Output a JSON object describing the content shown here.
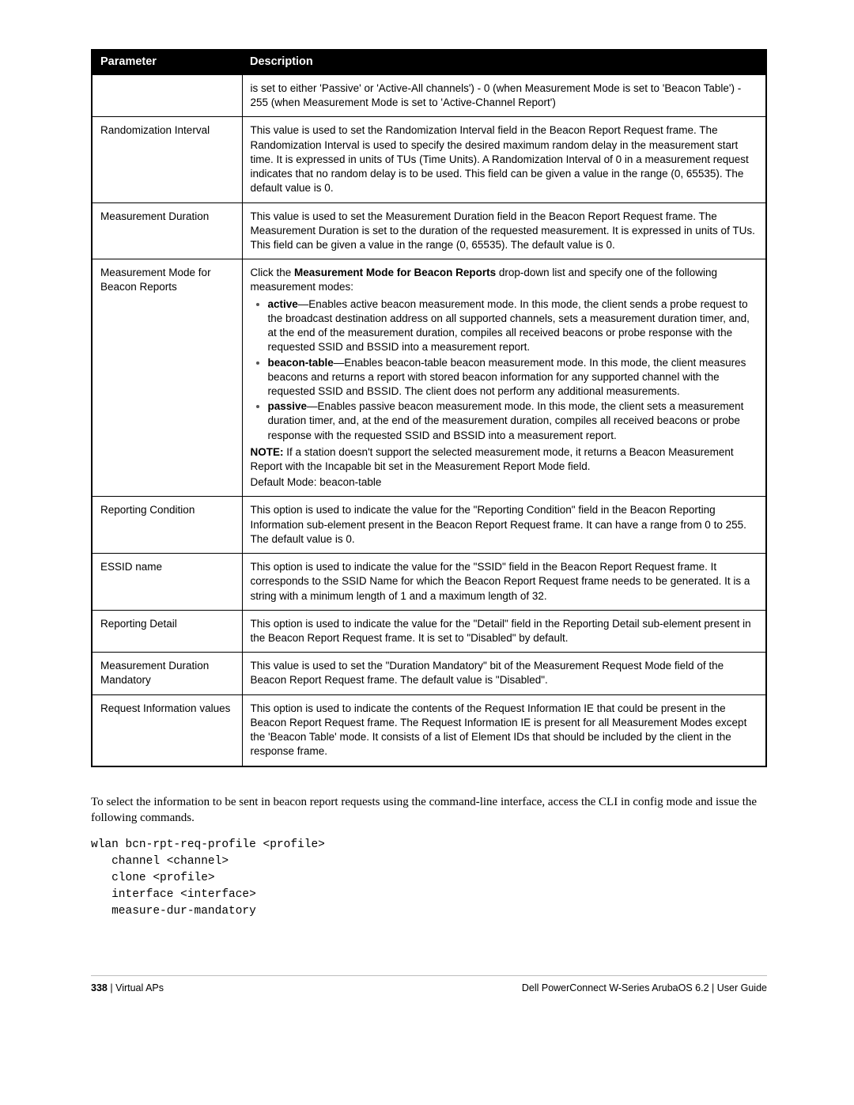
{
  "table": {
    "header": {
      "param": "Parameter",
      "desc": "Description"
    },
    "rows": [
      {
        "param": "",
        "desc_plain": "is set to either 'Passive' or 'Active-All channels') - 0 (when Measurement Mode is set to 'Beacon Table') - 255 (when Measurement Mode is set to 'Active-Channel Report')"
      },
      {
        "param": "Randomization Interval",
        "desc_plain": "This value is used to set the Randomization Interval field in the Beacon Report Request frame. The Randomization Interval is used to specify the desired maximum random delay in the measurement start time. It is expressed in units of TUs (Time Units). A Randomization Interval of 0 in a measurement request indicates that no random delay is to be used. This field can be given a value in the range (0, 65535). The default value is 0."
      },
      {
        "param": "Measurement Duration",
        "desc_plain": "This value is used to set the Measurement Duration field in the Beacon Report Request frame. The Measurement Duration is set to the duration of the requested measurement. It is expressed in units of TUs. This field can be given a value in the range (0, 65535). The default value is 0."
      },
      {
        "param": "Measurement Mode for Beacon Reports",
        "desc_rich": {
          "intro_pre": "Click the ",
          "intro_bold": "Measurement Mode for Beacon Reports",
          "intro_post": " drop-down list and specify one of the following measurement modes:",
          "bullets": [
            {
              "bold": "active",
              "text": "—Enables active beacon measurement mode. In this mode, the client sends a probe request to the broadcast destination address on all supported channels, sets a measurement duration timer, and, at the end of the measurement duration, compiles all received beacons or probe response with the requested SSID and BSSID into a measurement report."
            },
            {
              "bold": "beacon-table",
              "text": "—Enables beacon-table beacon measurement mode. In this mode, the client measures beacons and returns a report with stored beacon information for any supported channel with the requested SSID and BSSID. The client does not perform any additional measurements."
            },
            {
              "bold": "passive",
              "text": "—Enables passive beacon measurement mode. In this mode, the client sets a measurement duration timer, and, at the end of the measurement duration, compiles all received beacons or probe response with the requested SSID and BSSID into a measurement report."
            }
          ],
          "note_bold": "NOTE:",
          "note_text": " If a station doesn't support the selected measurement mode, it returns a Beacon Measurement Report with the Incapable bit set in the Measurement Report Mode field.",
          "default_text": "Default Mode: beacon-table"
        }
      },
      {
        "param": "Reporting Condition",
        "desc_plain": "This option is used to indicate the value for the \"Reporting Condition\" field in the Beacon Reporting Information sub-element present in the Beacon Report Request frame. It can have a range from 0 to 255. The default value is 0."
      },
      {
        "param": "ESSID name",
        "desc_plain": "This option is used to indicate the value for the \"SSID\" field in the Beacon Report Request frame. It corresponds to the SSID Name for which the Beacon Report Request frame needs to be generated. It is a string with a minimum length of 1 and a maximum length of 32."
      },
      {
        "param": "Reporting Detail",
        "desc_plain": "This option is used to indicate the value for the \"Detail\" field in the Reporting Detail sub-element present in the Beacon Report Request frame. It is set to \"Disabled\" by default."
      },
      {
        "param": "Measurement Duration Mandatory",
        "desc_plain": "This value is used to set the \"Duration Mandatory\" bit of the Measurement Request Mode field of the Beacon Report Request frame. The default value is \"Disabled\"."
      },
      {
        "param": "Request Information values",
        "desc_plain": "This option is used to indicate the contents of the Request Information IE that could be present in the Beacon Report Request frame. The Request Information IE is present for all Measurement Modes except the 'Beacon Table' mode. It consists of a list of Element IDs that should be included by the client in the response frame."
      }
    ]
  },
  "body_paragraph": "To select the information to be sent in beacon report requests using the command-line interface, access the CLI in config mode and issue the following commands.",
  "cli_block": "wlan bcn-rpt-req-profile <profile>\n   channel <channel>\n   clone <profile>\n   interface <interface>\n   measure-dur-mandatory",
  "footer": {
    "page_number": "338",
    "section": "Virtual APs",
    "product": "Dell PowerConnect W-Series ArubaOS 6.2",
    "doc_type": "User Guide"
  }
}
